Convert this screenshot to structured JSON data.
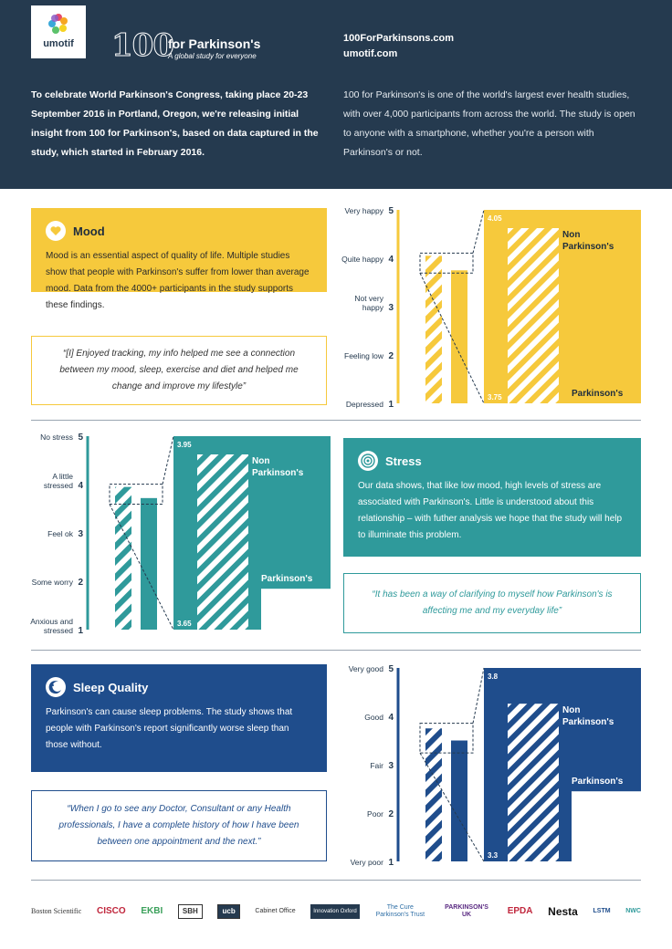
{
  "header": {
    "logo_text": "umotif",
    "brand_number": "100",
    "brand_name": "for Parkinson's",
    "brand_tagline": "A global study for everyone",
    "url1": "100ForParkinsons.com",
    "url2": "umotif.com",
    "intro_left": "To celebrate World Parkinson's Congress, taking place 20-23 September 2016 in Portland, Oregon, we're releasing initial insight from 100 for Parkinson's, based on data captured in the study, which started in February 2016.",
    "intro_right": "100 for Parkinson's is one of the world's largest ever health studies, with over 4,000 participants from across the world.  The study is open to anyone with a smartphone, whether you're a person with Parkinson's or not."
  },
  "colors": {
    "header_bg": "#253a4f",
    "mood": "#f6c93c",
    "stress": "#2f9a9b",
    "sleep": "#1f4d8c"
  },
  "mood": {
    "title": "Mood",
    "icon": "heart-icon",
    "body": "Mood is an essential aspect of quality of life. Multiple studies show that people with Parkinson's suffer from lower than average mood. Data from the 4000+ participants in the study supports these findings.",
    "quote": "“[I] Enjoyed tracking, my info helped me see a connection between my mood, sleep, exercise and diet and helped me change and improve my lifestyle”"
  },
  "stress": {
    "title": "Stress",
    "icon": "target-icon",
    "body": "Our data shows, that like low mood, high levels of stress are associated with Parkinson's. Little is understood about this relationship – with futher analysis we hope that the study will help to illuminate this problem.",
    "quote": "“It has been a way of clarifying to myself how Parkinson's is affecting me and my everyday life”"
  },
  "sleep": {
    "title": "Sleep Quality",
    "icon": "moon-icon",
    "body": "Parkinson's can cause sleep problems. The study shows that people with Parkinson's report significantly worse sleep than those without.",
    "quote": "“When I go to see any Doctor, Consultant or any Health professionals, I have a complete history of how I have been between one appointment and the next.”"
  },
  "chart_data": [
    {
      "type": "bar",
      "categories": [
        "Non Parkinson's",
        "Parkinson's"
      ],
      "values": [
        4.05,
        3.75
      ],
      "ylim": [
        1,
        5
      ],
      "ytick_values": [
        1,
        2,
        3,
        4,
        5
      ],
      "ytick_labels": [
        "Depressed",
        "Feeling low",
        "Not very happy",
        "Quite happy",
        "Very happy"
      ],
      "zoom_range": [
        3.75,
        4.05
      ],
      "zoom_labels": [
        "4.05",
        "3.75"
      ],
      "color": "#f6c93c"
    },
    {
      "type": "bar",
      "categories": [
        "Non Parkinson's",
        "Parkinson's"
      ],
      "values": [
        3.95,
        3.72
      ],
      "ylim": [
        1,
        5
      ],
      "ytick_values": [
        1,
        2,
        3,
        4,
        5
      ],
      "ytick_labels": [
        "Anxious and stressed",
        "Some worry",
        "Feel ok",
        "A little stressed",
        "No stress"
      ],
      "zoom_range": [
        3.65,
        3.95
      ],
      "zoom_labels": [
        "3.95",
        "3.65"
      ],
      "color": "#2f9a9b"
    },
    {
      "type": "bar",
      "categories": [
        "Non Parkinson's",
        "Parkinson's"
      ],
      "values": [
        3.75,
        3.5
      ],
      "ylim": [
        1,
        5
      ],
      "ytick_values": [
        1,
        2,
        3,
        4,
        5
      ],
      "ytick_labels": [
        "Very poor",
        "Poor",
        "Fair",
        "Good",
        "Very good"
      ],
      "zoom_range": [
        3.3,
        3.8
      ],
      "zoom_labels": [
        "3.8",
        "3.3"
      ],
      "color": "#1f4d8c"
    }
  ],
  "footer": {
    "logos": [
      "Boston Scientific",
      "CISCO",
      "EKBI",
      "SBH",
      "ucb",
      "Cabinet Office",
      "Innovation Oxford",
      "The Cure Parkinson's Trust",
      "PARKINSON'S UK",
      "EPDA",
      "Nesta",
      "LSTM",
      "NWC"
    ]
  }
}
